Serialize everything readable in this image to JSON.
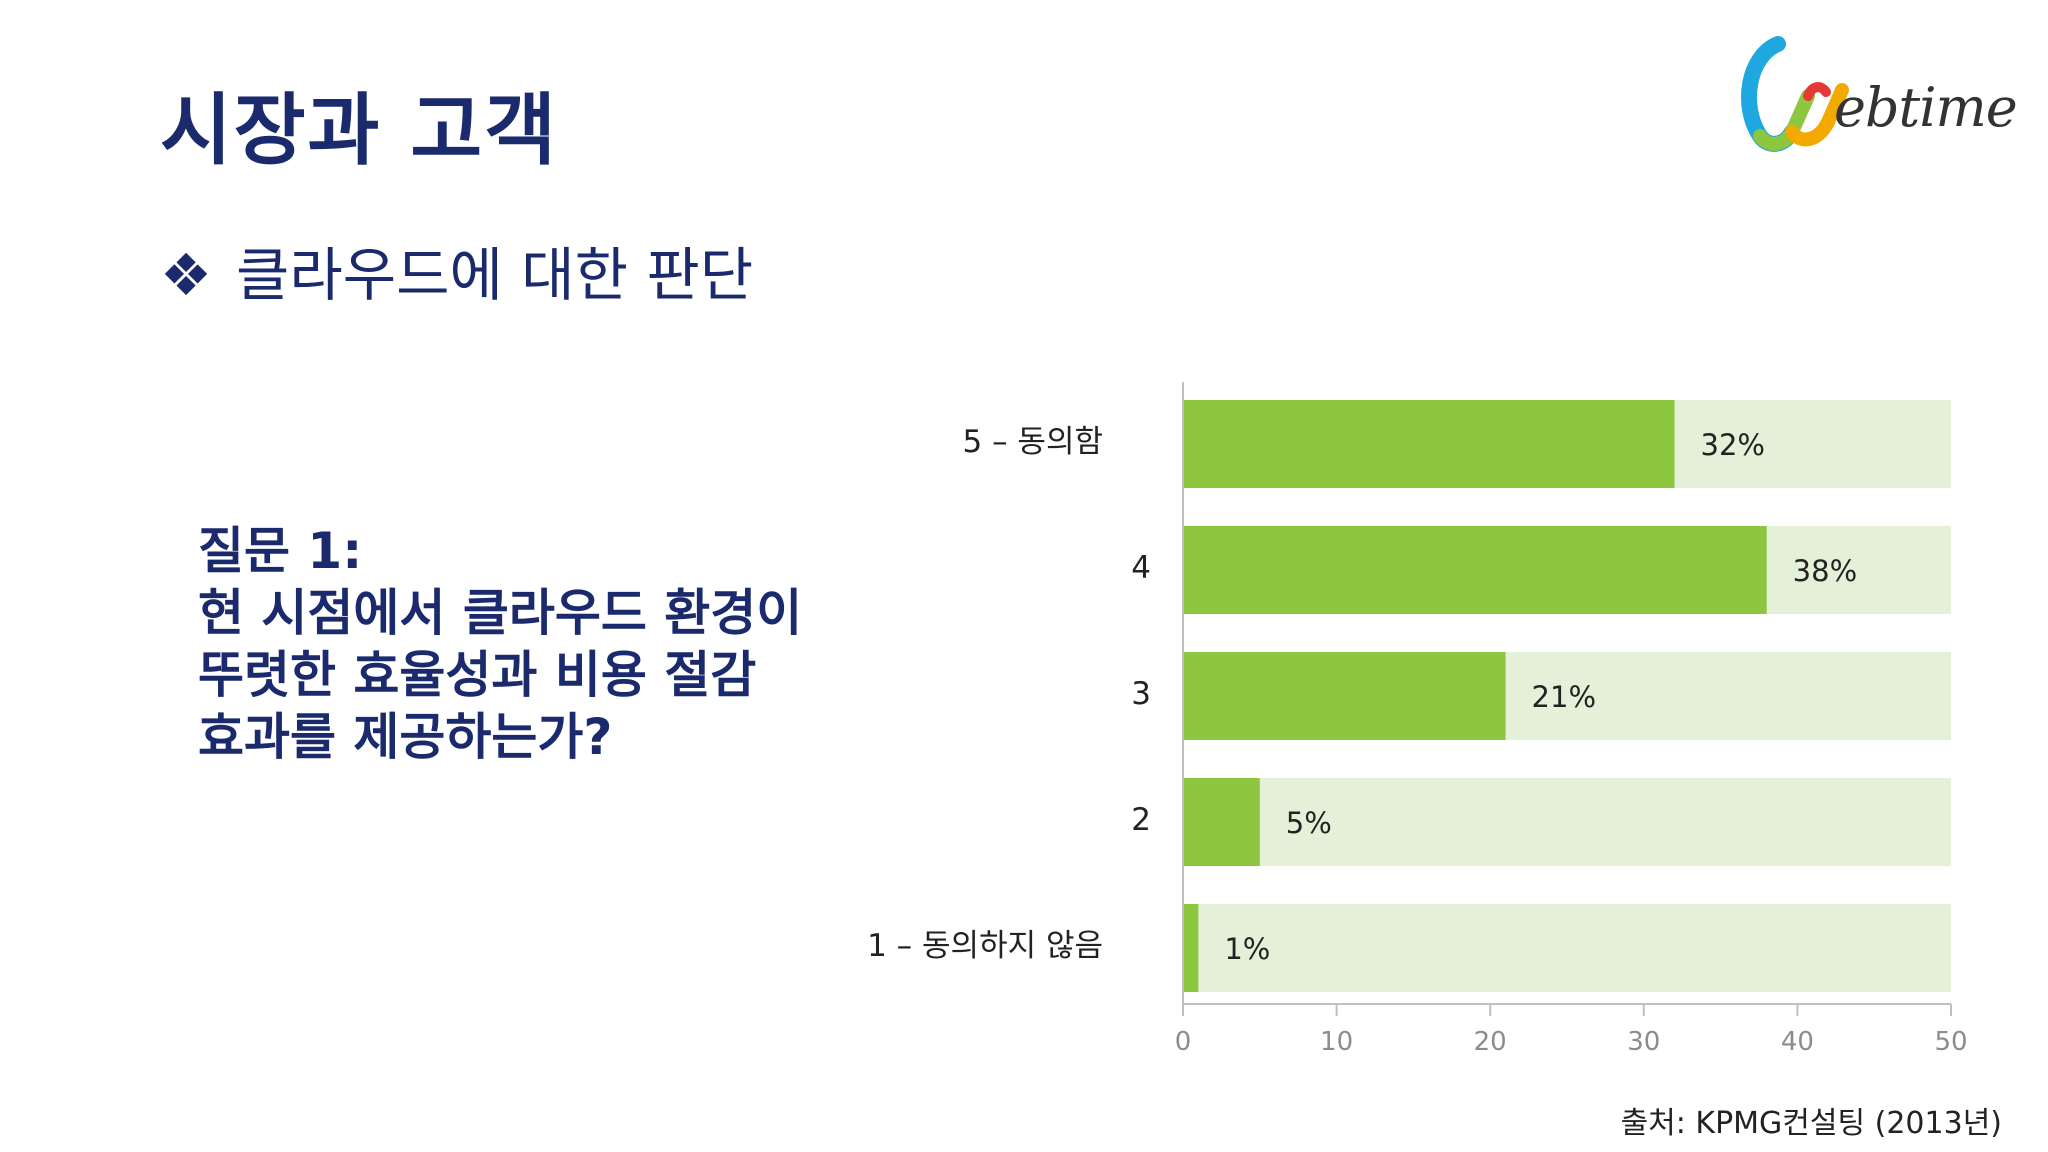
{
  "slide": {
    "title": "시장과 고객",
    "subtitle_bullet": "❖",
    "subtitle": "클라우드에 대한 판단",
    "question_lines": [
      "질문 1:",
      "현 시점에서 클라우드 환경이",
      "뚜렷한 효율성과 비용 절감",
      "효과를 제공하는가?"
    ],
    "source": "출처: KPMG컨설팅 (2013년)",
    "logo_text": "ebtime"
  },
  "colors": {
    "title": "#1a2a6c",
    "bar_fill": "#8dc63f",
    "bar_track": "#e5f0d8",
    "axis": "#c0c0c0",
    "tick_label": "#8c8c8c"
  },
  "chart_data": {
    "type": "bar",
    "orientation": "horizontal",
    "categories": [
      "5 – 동의함",
      "4",
      "3",
      "2",
      "1 – 동의하지 않음"
    ],
    "values": [
      32,
      38,
      21,
      5,
      1
    ],
    "data_labels": [
      "32%",
      "38%",
      "21%",
      "5%",
      "1%"
    ],
    "xlim": [
      0,
      50
    ],
    "xticks": [
      "0",
      "10",
      "20",
      "30",
      "40",
      "50"
    ],
    "grid": false,
    "legend": "none"
  }
}
